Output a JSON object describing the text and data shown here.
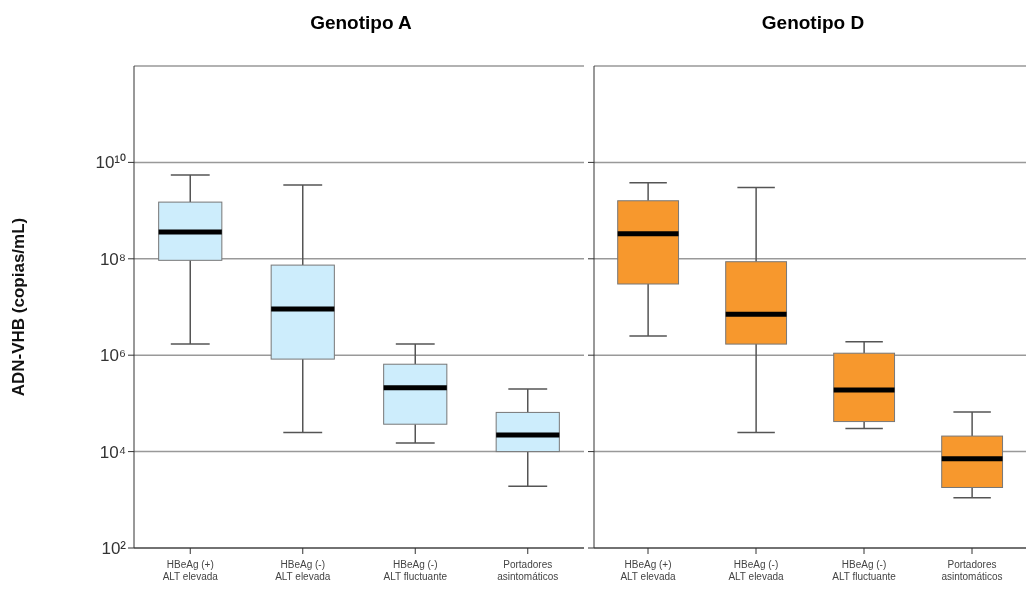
{
  "chart_data": [
    {
      "type": "box",
      "title": "Genotipo A",
      "ylabel": "ADN-VHB (copias/mL)",
      "categories": [
        "HBeAg (+)\nALT elevada",
        "HBeAg (-)\nALT elevada",
        "HBeAg (-)\nALT fluctuante",
        "Portadores\nasintomáticos"
      ],
      "log": "y",
      "grid": "y",
      "ylim": [
        100,
        1000000000000
      ],
      "yticks": [
        {
          "value": 100,
          "label": "10²"
        },
        {
          "value": 10000,
          "label": "10⁴"
        },
        {
          "value": 1000000,
          "label": "10⁶"
        },
        {
          "value": 100000000,
          "label": "10⁸"
        },
        {
          "value": 10000000000,
          "label": "10¹⁰"
        }
      ],
      "series": [
        {
          "color": "#cdedfc",
          "boxes": [
            {
              "low": 1700000,
              "q1": 93000000,
              "median": 360000000,
              "q3": 1500000000,
              "high": 5500000000
            },
            {
              "low": 25000,
              "q1": 830000,
              "median": 9100000,
              "q3": 74000000,
              "high": 3400000000
            },
            {
              "low": 15000,
              "q1": 37000,
              "median": 210000,
              "q3": 650000,
              "high": 1700000
            },
            {
              "low": 1900,
              "q1": 10000,
              "median": 22000,
              "q3": 65000,
              "high": 200000
            }
          ]
        }
      ]
    },
    {
      "type": "box",
      "title": "Genotipo D",
      "categories": [
        "HBeAg (+)\nALT elevada",
        "HBeAg (-)\nALT elevada",
        "HBeAg (-)\nALT fluctuante",
        "Portadores\nasintomáticos"
      ],
      "log": "y",
      "grid": "y",
      "tick_labels": "x",
      "ylim": [
        100,
        1000000000000
      ],
      "yticks": [
        100,
        10000,
        1000000,
        100000000,
        10000000000
      ],
      "series": [
        {
          "color": "#f7982d",
          "boxes": [
            {
              "low": 2500000,
              "q1": 30000000,
              "median": 330000000,
              "q3": 1600000000,
              "high": 3800000000
            },
            {
              "low": 25000,
              "q1": 1700000,
              "median": 7100000,
              "q3": 87000000,
              "high": 3000000000
            },
            {
              "low": 30000,
              "q1": 42000,
              "median": 190000,
              "q3": 1100000,
              "high": 1900000
            },
            {
              "low": 1100,
              "q1": 1800,
              "median": 7100,
              "q3": 21000,
              "high": 66000
            }
          ]
        }
      ]
    }
  ]
}
